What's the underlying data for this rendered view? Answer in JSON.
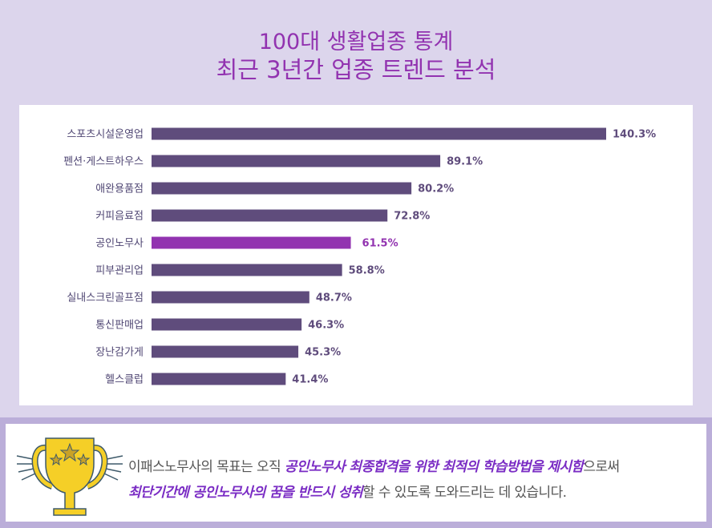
{
  "header": {
    "title": "100대 생활업종 통계",
    "subtitle": "최근 3년간 업종 트렌드 분석"
  },
  "colors": {
    "bar": "#5f4c7c",
    "highlight": "#9233b0",
    "background": "#dcd5ec",
    "message_accent": "#7a2cc4"
  },
  "chart_data": {
    "type": "bar",
    "orientation": "horizontal",
    "categories": [
      "스포츠시설운영업",
      "펜션·게스트하우스",
      "애완용품점",
      "커피음료점",
      "공인노무사",
      "피부관리업",
      "실내스크린골프점",
      "통신판매업",
      "장난감가게",
      "헬스클럽"
    ],
    "values": [
      140.3,
      89.1,
      80.2,
      72.8,
      61.5,
      58.8,
      48.7,
      46.3,
      45.3,
      41.4
    ],
    "labels": [
      "140.3%",
      "89.1%",
      "80.2%",
      "72.8%",
      "61.5%",
      "58.8%",
      "48.7%",
      "46.3%",
      "45.3%",
      "41.4%"
    ],
    "highlight_category": "공인노무사",
    "xlim": [
      0,
      140.3
    ],
    "grid": false
  },
  "message": {
    "icon": "trophy-icon",
    "parts": [
      {
        "text": "이패스노무사의 목표는 오직 ",
        "hl": false
      },
      {
        "text": "공인노무사 최종합격을 위한 최적의 학습방법을 제시함",
        "hl": true
      },
      {
        "text": "으로써",
        "hl": false
      },
      {
        "text": "최단기간에 공인노무사의 꿈을 반드시 성취",
        "hl": true,
        "br": true
      },
      {
        "text": "할 수 있도록 도와드리는 데 있습니다.",
        "hl": false
      }
    ]
  }
}
